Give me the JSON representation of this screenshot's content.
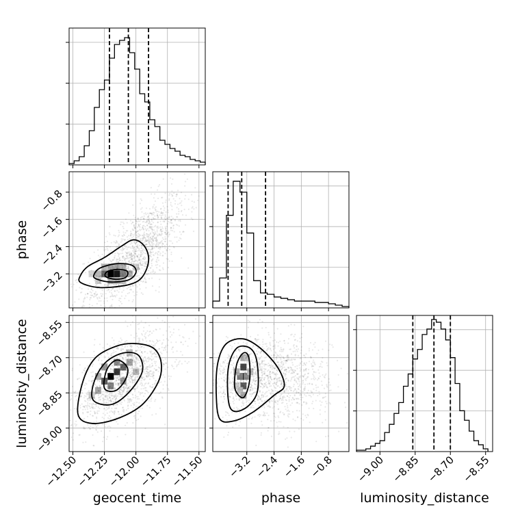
{
  "chart_data": {
    "type": "corner",
    "parameters": [
      "geocent_time",
      "phase",
      "luminosity_distance"
    ],
    "ranges": {
      "geocent_time": [
        -12.53,
        -11.45
      ],
      "phase": [
        -4.2,
        -0.2
      ],
      "luminosity_distance": [
        -9.1,
        -8.52
      ]
    },
    "tick_labels": {
      "geocent_time": [
        "−12.50",
        "−12.25",
        "−12.00",
        "−11.75",
        "−11.50"
      ],
      "phase": [
        "−3.2",
        "−2.4",
        "−1.6",
        "−0.8"
      ],
      "luminosity_distance": [
        "−9.00",
        "−8.85",
        "−8.70",
        "−8.55"
      ]
    },
    "tick_values": {
      "geocent_time": [
        -12.5,
        -12.25,
        -12.0,
        -11.75,
        -11.5
      ],
      "phase": [
        -3.2,
        -2.4,
        -1.6,
        -0.8
      ],
      "luminosity_distance": [
        -9.0,
        -8.85,
        -8.7,
        -8.55
      ]
    },
    "quantiles": {
      "geocent_time": [
        -12.21,
        -12.06,
        -11.9
      ],
      "phase": [
        -3.75,
        -3.35,
        -2.65
      ],
      "luminosity_distance": [
        -8.86,
        -8.77,
        -8.7
      ]
    },
    "histograms": {
      "geocent_time": {
        "edges": [
          -12.53,
          -12.49,
          -12.45,
          -12.41,
          -12.37,
          -12.33,
          -12.29,
          -12.25,
          -12.21,
          -12.17,
          -12.13,
          -12.09,
          -12.05,
          -12.01,
          -11.97,
          -11.93,
          -11.89,
          -11.85,
          -11.81,
          -11.77,
          -11.73,
          -11.69,
          -11.65,
          -11.61,
          -11.57,
          -11.53,
          -11.49,
          -11.45
        ],
        "counts": [
          0.01,
          0.03,
          0.06,
          0.14,
          0.25,
          0.42,
          0.55,
          0.62,
          0.78,
          0.88,
          0.91,
          0.93,
          0.82,
          0.7,
          0.52,
          0.46,
          0.33,
          0.28,
          0.18,
          0.15,
          0.12,
          0.1,
          0.07,
          0.06,
          0.04,
          0.03,
          0.02
        ]
      },
      "phase": {
        "edges": [
          -4.2,
          -4.0,
          -3.8,
          -3.6,
          -3.4,
          -3.2,
          -3.0,
          -2.8,
          -2.6,
          -2.4,
          -2.2,
          -2.0,
          -1.8,
          -1.6,
          -1.4,
          -1.2,
          -1.0,
          -0.8,
          -0.6,
          -0.4,
          -0.2
        ],
        "counts": [
          0.05,
          0.22,
          0.68,
          0.93,
          0.85,
          0.55,
          0.2,
          0.11,
          0.1,
          0.08,
          0.07,
          0.06,
          0.05,
          0.05,
          0.05,
          0.04,
          0.04,
          0.03,
          0.02,
          0.01
        ]
      },
      "luminosity_distance": {
        "edges": [
          -9.1,
          -9.08,
          -9.06,
          -9.04,
          -9.02,
          -9.0,
          -8.98,
          -8.96,
          -8.94,
          -8.92,
          -8.9,
          -8.88,
          -8.86,
          -8.84,
          -8.82,
          -8.8,
          -8.78,
          -8.76,
          -8.74,
          -8.72,
          -8.7,
          -8.68,
          -8.66,
          -8.64,
          -8.62,
          -8.6,
          -8.58,
          -8.56,
          -8.54
        ],
        "counts": [
          0.01,
          0.01,
          0.02,
          0.04,
          0.06,
          0.08,
          0.14,
          0.2,
          0.28,
          0.36,
          0.48,
          0.57,
          0.68,
          0.75,
          0.86,
          0.9,
          0.97,
          0.95,
          0.9,
          0.82,
          0.69,
          0.5,
          0.3,
          0.23,
          0.15,
          0.08,
          0.05,
          0.02
        ]
      }
    },
    "pairs": [
      {
        "x": "geocent_time",
        "y": "phase",
        "peak": [
          -12.2,
          -3.2
        ],
        "contours": [
          [
            [
              -12.44,
              -3.45
            ],
            [
              -12.3,
              -3.6
            ],
            [
              -12.1,
              -3.55
            ],
            [
              -11.98,
              -3.4
            ],
            [
              -11.92,
              -3.1
            ],
            [
              -11.9,
              -2.7
            ],
            [
              -11.94,
              -2.35
            ],
            [
              -12.02,
              -2.2
            ],
            [
              -12.12,
              -2.4
            ],
            [
              -12.25,
              -2.72
            ],
            [
              -12.38,
              -2.98
            ],
            [
              -12.44,
              -3.25
            ]
          ],
          [
            [
              -12.32,
              -3.34
            ],
            [
              -12.2,
              -3.44
            ],
            [
              -12.06,
              -3.38
            ],
            [
              -12.0,
              -3.16
            ],
            [
              -12.03,
              -2.95
            ],
            [
              -12.15,
              -2.9
            ],
            [
              -12.28,
              -3.02
            ],
            [
              -12.33,
              -3.2
            ]
          ],
          [
            [
              -12.24,
              -3.28
            ],
            [
              -12.16,
              -3.36
            ],
            [
              -12.08,
              -3.3
            ],
            [
              -12.07,
              -3.12
            ],
            [
              -12.15,
              -3.07
            ],
            [
              -12.23,
              -3.14
            ]
          ]
        ],
        "density": [
          [
            -12.2,
            -3.2,
            1.0
          ],
          [
            -12.15,
            -3.2,
            0.9
          ],
          [
            -12.25,
            -3.2,
            0.55
          ],
          [
            -12.1,
            -3.2,
            0.45
          ],
          [
            -12.2,
            -3.0,
            0.3
          ],
          [
            -12.15,
            -3.0,
            0.3
          ],
          [
            -12.1,
            -3.0,
            0.22
          ],
          [
            -12.25,
            -3.0,
            0.2
          ],
          [
            -12.2,
            -3.4,
            0.25
          ],
          [
            -12.15,
            -3.4,
            0.22
          ],
          [
            -12.3,
            -3.2,
            0.22
          ],
          [
            -12.05,
            -3.2,
            0.25
          ],
          [
            -12.0,
            -3.0,
            0.12
          ],
          [
            -12.3,
            -3.4,
            0.12
          ],
          [
            -12.1,
            -3.4,
            0.15
          ],
          [
            -12.35,
            -3.2,
            0.1
          ]
        ],
        "scatter_cloud": {
          "center": [
            -12.0,
            -2.6
          ],
          "spread": [
            0.2,
            0.85
          ],
          "corr": 0.72,
          "n": 1500
        }
      },
      {
        "x": "geocent_time",
        "y": "luminosity_distance",
        "peak": [
          -12.2,
          -8.78
        ],
        "contours": [
          [
            [
              -12.46,
              -8.94
            ],
            [
              -12.35,
              -8.98
            ],
            [
              -12.15,
              -8.96
            ],
            [
              -11.95,
              -8.9
            ],
            [
              -11.82,
              -8.8
            ],
            [
              -11.8,
              -8.72
            ],
            [
              -11.86,
              -8.66
            ],
            [
              -12.0,
              -8.64
            ],
            [
              -12.15,
              -8.65
            ],
            [
              -12.32,
              -8.7
            ],
            [
              -12.42,
              -8.8
            ]
          ],
          [
            [
              -12.34,
              -8.88
            ],
            [
              -12.2,
              -8.9
            ],
            [
              -12.06,
              -8.85
            ],
            [
              -11.95,
              -8.76
            ],
            [
              -11.98,
              -8.69
            ],
            [
              -12.1,
              -8.68
            ],
            [
              -12.24,
              -8.72
            ],
            [
              -12.33,
              -8.8
            ]
          ],
          [
            [
              -12.25,
              -8.83
            ],
            [
              -12.16,
              -8.84
            ],
            [
              -12.08,
              -8.79
            ],
            [
              -12.07,
              -8.74
            ],
            [
              -12.15,
              -8.71
            ],
            [
              -12.23,
              -8.75
            ]
          ]
        ],
        "density": [
          [
            -12.2,
            -8.78,
            1.0
          ],
          [
            -12.15,
            -8.76,
            0.75
          ],
          [
            -12.25,
            -8.8,
            0.6
          ],
          [
            -12.1,
            -8.74,
            0.55
          ],
          [
            -12.2,
            -8.82,
            0.45
          ],
          [
            -12.15,
            -8.72,
            0.4
          ],
          [
            -12.25,
            -8.74,
            0.35
          ],
          [
            -12.3,
            -8.84,
            0.3
          ],
          [
            -12.05,
            -8.72,
            0.3
          ],
          [
            -12.1,
            -8.8,
            0.35
          ],
          [
            -12.3,
            -8.78,
            0.25
          ],
          [
            -12.0,
            -8.76,
            0.2
          ],
          [
            -12.35,
            -8.86,
            0.15
          ],
          [
            -12.05,
            -8.68,
            0.18
          ]
        ],
        "scatter_cloud": {
          "center": [
            -12.1,
            -8.79
          ],
          "spread": [
            0.2,
            0.1
          ],
          "corr": 0.55,
          "n": 1500
        }
      },
      {
        "x": "phase",
        "y": "luminosity_distance",
        "peak": [
          -3.3,
          -8.78
        ],
        "contours": [
          [
            [
              -4.0,
              -8.96
            ],
            [
              -3.6,
              -8.97
            ],
            [
              -3.0,
              -8.93
            ],
            [
              -2.4,
              -8.86
            ],
            [
              -2.1,
              -8.82
            ],
            [
              -2.3,
              -8.74
            ],
            [
              -2.8,
              -8.66
            ],
            [
              -3.3,
              -8.62
            ],
            [
              -3.8,
              -8.64
            ],
            [
              -4.05,
              -8.72
            ],
            [
              -4.1,
              -8.85
            ]
          ],
          [
            [
              -3.7,
              -8.91
            ],
            [
              -3.3,
              -8.92
            ],
            [
              -2.9,
              -8.85
            ],
            [
              -2.9,
              -8.72
            ],
            [
              -3.1,
              -8.66
            ],
            [
              -3.5,
              -8.66
            ],
            [
              -3.75,
              -8.75
            ]
          ],
          [
            [
              -3.55,
              -8.83
            ],
            [
              -3.3,
              -8.87
            ],
            [
              -3.12,
              -8.8
            ],
            [
              -3.14,
              -8.7
            ],
            [
              -3.3,
              -8.68
            ],
            [
              -3.5,
              -8.73
            ]
          ]
        ],
        "density": [
          [
            -3.3,
            -8.78,
            1.0
          ],
          [
            -3.3,
            -8.74,
            0.7
          ],
          [
            -3.3,
            -8.82,
            0.6
          ],
          [
            -3.4,
            -8.78,
            0.45
          ],
          [
            -3.2,
            -8.78,
            0.4
          ],
          [
            -3.3,
            -8.7,
            0.3
          ],
          [
            -3.3,
            -8.86,
            0.3
          ],
          [
            -3.5,
            -8.76,
            0.25
          ],
          [
            -3.1,
            -8.76,
            0.2
          ],
          [
            -3.4,
            -8.84,
            0.2
          ],
          [
            -3.2,
            -8.7,
            0.2
          ],
          [
            -3.5,
            -8.82,
            0.15
          ]
        ],
        "scatter_cloud": {
          "center": [
            -2.6,
            -8.79
          ],
          "spread": [
            0.9,
            0.09
          ],
          "corr": 0.0,
          "n": 1500
        }
      }
    ]
  }
}
